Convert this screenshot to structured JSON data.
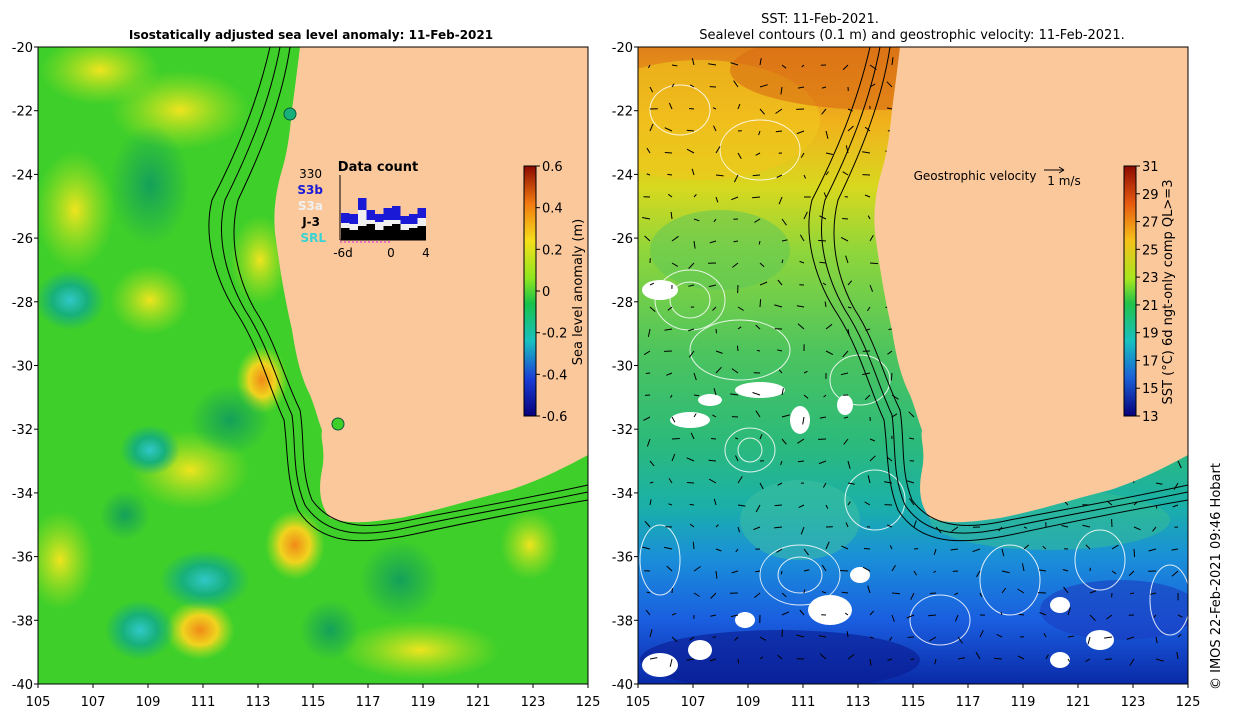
{
  "left_panel": {
    "title": "Isostatically adjusted sea level anomaly: 11-Feb-2021",
    "colorbar": {
      "label": "Sea level anomaly (m)",
      "ticks": [
        "0.6",
        "0.4",
        "0.2",
        "0",
        "-0.2",
        "-0.4",
        "-0.6"
      ]
    },
    "data_count": {
      "title": "Data count",
      "total": "330",
      "sources": [
        {
          "name": "S3b",
          "color": "#1a1ad6"
        },
        {
          "name": "S3a",
          "color": "#f0f0f0"
        },
        {
          "name": "J-3",
          "color": "#000000"
        },
        {
          "name": "SRL",
          "color": "#36d3d3"
        }
      ],
      "axis_labels": [
        "-6d",
        "0",
        "4"
      ]
    }
  },
  "right_panel": {
    "title_line1": "SST: 11-Feb-2021.",
    "title_line2": "Sealevel contours (0.1 m) and geostrophic velocity: 11-Feb-2021.",
    "velocity_label": "Geostrophic velocity",
    "velocity_scale": "1 m/s",
    "colorbar": {
      "label": "SST (°C) 6d ngt-only comp QL>=3",
      "ticks": [
        "31",
        "29",
        "27",
        "25",
        "23",
        "21",
        "19",
        "17",
        "15",
        "13"
      ]
    }
  },
  "axes": {
    "y_ticks": [
      "-20",
      "-22",
      "-24",
      "-26",
      "-28",
      "-30",
      "-32",
      "-34",
      "-36",
      "-38",
      "-40"
    ],
    "x_ticks": [
      "105",
      "107",
      "109",
      "111",
      "113",
      "115",
      "117",
      "119",
      "121",
      "123",
      "125"
    ]
  },
  "credit": "© IMOS 22-Feb-2021 09:46 Hobart",
  "colors": {
    "land": "#fbc89b",
    "sla_green": "#3ecf2a",
    "sla_light": "#b5e51e",
    "sla_teal": "#17b07a",
    "sst_orange": "#e88a1a",
    "sst_green": "#43c26a",
    "sst_blue": "#1c6fe0"
  }
}
